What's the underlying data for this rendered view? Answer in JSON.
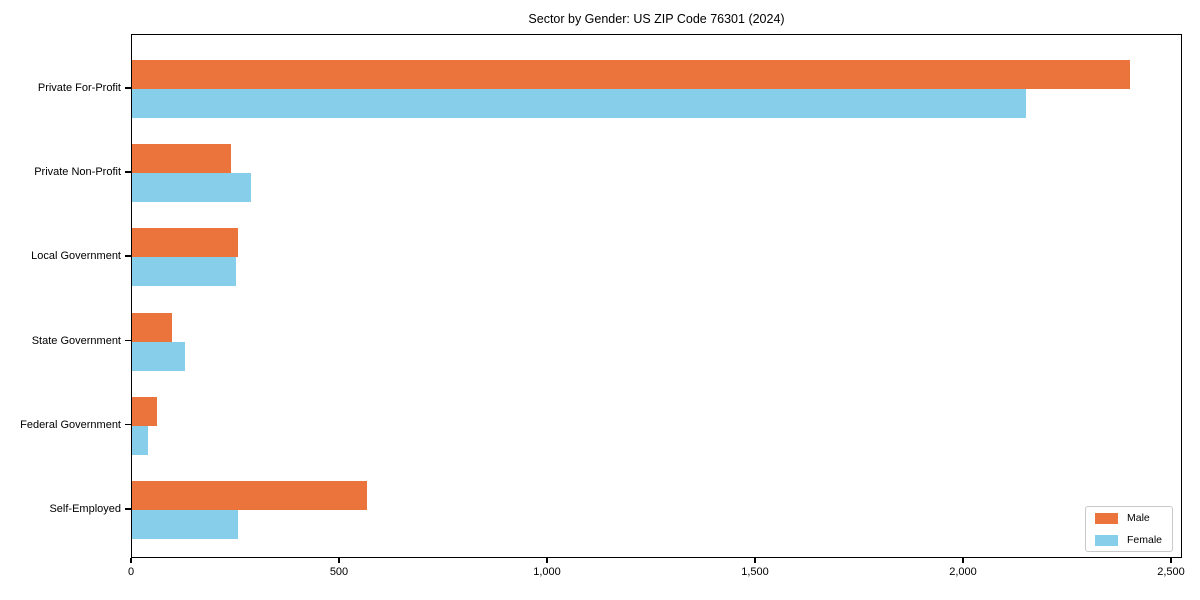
{
  "chart_data": {
    "type": "bar",
    "orientation": "horizontal",
    "title": "Sector by Gender: US ZIP Code 76301 (2024)",
    "xlabel": "",
    "ylabel": "",
    "categories": [
      "Private For-Profit",
      "Private Non-Profit",
      "Local Government",
      "State Government",
      "Federal Government",
      "Self-Employed"
    ],
    "series": [
      {
        "name": "Male",
        "color": "#EB743C",
        "values": [
          2400,
          238,
          255,
          95,
          60,
          565
        ]
      },
      {
        "name": "Female",
        "color": "#87CEEB",
        "values": [
          2150,
          286,
          250,
          127,
          38,
          256
        ]
      }
    ],
    "xlim": [
      0,
      2500
    ],
    "xticks": [
      {
        "value": 0,
        "label": "0"
      },
      {
        "value": 500,
        "label": "500"
      },
      {
        "value": 1000,
        "label": "1,000"
      },
      {
        "value": 1500,
        "label": "1,500"
      },
      {
        "value": 2000,
        "label": "2,000"
      },
      {
        "value": 2500,
        "label": "2,500"
      }
    ],
    "grid": false,
    "legend_position": "lower right",
    "background_color": "#ffffff",
    "axis_color": "#000000"
  }
}
